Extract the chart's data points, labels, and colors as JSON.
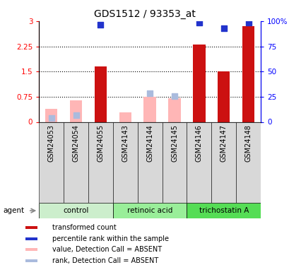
{
  "title": "GDS1512 / 93353_at",
  "samples": [
    "GSM24053",
    "GSM24054",
    "GSM24055",
    "GSM24143",
    "GSM24144",
    "GSM24145",
    "GSM24146",
    "GSM24147",
    "GSM24148"
  ],
  "transformed_count": [
    null,
    null,
    1.65,
    null,
    null,
    null,
    2.3,
    1.5,
    2.85
  ],
  "transformed_count_absent": [
    0.4,
    0.65,
    null,
    0.28,
    0.75,
    0.71,
    null,
    null,
    null
  ],
  "percentile_rank_left": [
    null,
    null,
    2.9,
    null,
    null,
    null,
    2.95,
    2.8,
    2.95
  ],
  "percentile_rank_absent_left": [
    0.12,
    0.2,
    null,
    null,
    0.85,
    0.77,
    null,
    null,
    null
  ],
  "ylim_left": [
    0,
    3
  ],
  "yticks_left": [
    0,
    0.75,
    1.5,
    2.25,
    3
  ],
  "ytick_labels_left": [
    "0",
    "0.75",
    "1.5",
    "2.25",
    "3"
  ],
  "ytick_labels_right": [
    "0",
    "25",
    "50",
    "75",
    "100%"
  ],
  "hlines": [
    0.75,
    1.5,
    2.25
  ],
  "bar_color_present": "#cc1111",
  "bar_color_absent": "#ffb6b6",
  "dot_color_present": "#2233cc",
  "dot_color_absent": "#aabbdd",
  "group_defs": [
    {
      "name": "control",
      "start": 0,
      "end": 3,
      "color": "#cceecc"
    },
    {
      "name": "retinoic acid",
      "start": 3,
      "end": 6,
      "color": "#99ee99"
    },
    {
      "name": "trichostatin A",
      "start": 6,
      "end": 9,
      "color": "#55dd55"
    }
  ],
  "legend_items": [
    {
      "label": "transformed count",
      "color": "#cc1111"
    },
    {
      "label": "percentile rank within the sample",
      "color": "#2233cc"
    },
    {
      "label": "value, Detection Call = ABSENT",
      "color": "#ffb6b6"
    },
    {
      "label": "rank, Detection Call = ABSENT",
      "color": "#aabbdd"
    }
  ],
  "bar_width": 0.5,
  "dot_size": 30
}
